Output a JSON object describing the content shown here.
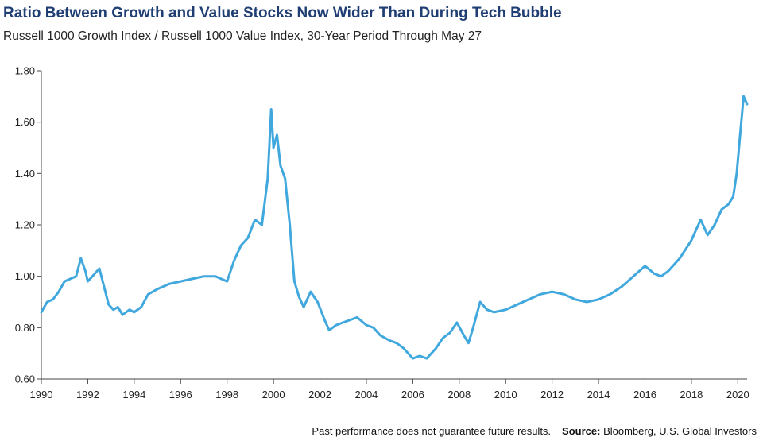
{
  "title": "Ratio Between Growth and Value Stocks Now Wider Than During Tech Bubble",
  "subtitle": "Russell 1000 Growth Index / Russell 1000 Value Index, 30-Year Period Through May 27",
  "footer": {
    "disclaimer": "Past performance does not guarantee future results.",
    "source_label": "Source:",
    "source_text": "Bloomberg, U.S. Global Investors"
  },
  "colors": {
    "line": "#41a8de",
    "axis": "#444444",
    "title": "#1f3e73"
  },
  "chart_data": {
    "type": "line",
    "title": "Ratio Between Growth and Value Stocks Now Wider Than During Tech Bubble",
    "xlabel": "",
    "ylabel": "",
    "grid": false,
    "xlim": [
      1990,
      2020.4
    ],
    "ylim": [
      0.6,
      1.8
    ],
    "x_ticks": [
      1990,
      1992,
      1994,
      1996,
      1998,
      2000,
      2002,
      2004,
      2006,
      2008,
      2010,
      2012,
      2014,
      2016,
      2018,
      2020
    ],
    "x_tick_labels": [
      "1990",
      "1992",
      "1994",
      "1996",
      "1998",
      "2000",
      "2002",
      "2004",
      "2006",
      "2008",
      "2010",
      "2012",
      "2014",
      "2016",
      "2018",
      "2020"
    ],
    "y_ticks": [
      0.6,
      0.8,
      1.0,
      1.2,
      1.4,
      1.6,
      1.8
    ],
    "y_tick_labels": [
      "0.60",
      "0.80",
      "1.00",
      "1.20",
      "1.40",
      "1.60",
      "1.80"
    ],
    "series": [
      {
        "name": "Russell 1000 Growth / Russell 1000 Value",
        "x": [
          1990.0,
          1990.25,
          1990.5,
          1990.75,
          1991.0,
          1991.25,
          1991.5,
          1991.7,
          1991.9,
          1992.0,
          1992.2,
          1992.5,
          1992.7,
          1992.9,
          1993.1,
          1993.3,
          1993.5,
          1993.8,
          1994.0,
          1994.3,
          1994.6,
          1995.0,
          1995.5,
          1996.0,
          1996.5,
          1997.0,
          1997.5,
          1998.0,
          1998.3,
          1998.6,
          1998.9,
          1999.2,
          1999.5,
          1999.75,
          1999.9,
          2000.0,
          2000.15,
          2000.3,
          2000.5,
          2000.7,
          2000.9,
          2001.1,
          2001.3,
          2001.6,
          2001.9,
          2002.2,
          2002.4,
          2002.7,
          2003.0,
          2003.3,
          2003.6,
          2004.0,
          2004.3,
          2004.6,
          2005.0,
          2005.3,
          2005.6,
          2006.0,
          2006.3,
          2006.6,
          2007.0,
          2007.3,
          2007.6,
          2007.9,
          2008.2,
          2008.4,
          2008.6,
          2008.9,
          2009.2,
          2009.5,
          2010.0,
          2010.5,
          2011.0,
          2011.5,
          2012.0,
          2012.5,
          2013.0,
          2013.5,
          2014.0,
          2014.5,
          2015.0,
          2015.5,
          2016.0,
          2016.4,
          2016.7,
          2017.0,
          2017.5,
          2018.0,
          2018.4,
          2018.7,
          2019.0,
          2019.3,
          2019.6,
          2019.8,
          2019.95,
          2020.1,
          2020.25,
          2020.4
        ],
        "values": [
          0.86,
          0.9,
          0.91,
          0.94,
          0.98,
          0.99,
          1.0,
          1.07,
          1.02,
          0.98,
          1.0,
          1.03,
          0.96,
          0.89,
          0.87,
          0.88,
          0.85,
          0.87,
          0.86,
          0.88,
          0.93,
          0.95,
          0.97,
          0.98,
          0.99,
          1.0,
          1.0,
          0.98,
          1.06,
          1.12,
          1.15,
          1.22,
          1.2,
          1.38,
          1.65,
          1.5,
          1.55,
          1.43,
          1.38,
          1.2,
          0.98,
          0.92,
          0.88,
          0.94,
          0.9,
          0.83,
          0.79,
          0.81,
          0.82,
          0.83,
          0.84,
          0.81,
          0.8,
          0.77,
          0.75,
          0.74,
          0.72,
          0.68,
          0.69,
          0.68,
          0.72,
          0.76,
          0.78,
          0.82,
          0.77,
          0.74,
          0.8,
          0.9,
          0.87,
          0.86,
          0.87,
          0.89,
          0.91,
          0.93,
          0.94,
          0.93,
          0.91,
          0.9,
          0.91,
          0.93,
          0.96,
          1.0,
          1.04,
          1.01,
          1.0,
          1.02,
          1.07,
          1.14,
          1.22,
          1.16,
          1.2,
          1.26,
          1.28,
          1.31,
          1.4,
          1.55,
          1.7,
          1.67
        ]
      }
    ]
  }
}
